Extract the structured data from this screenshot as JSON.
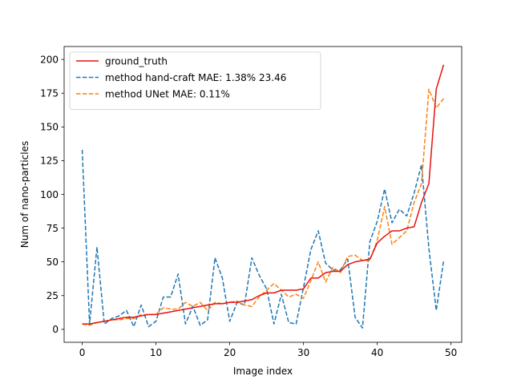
{
  "chart_data": {
    "type": "line",
    "xlabel": "Image index",
    "ylabel": "Num of nano-particles",
    "xlim": [
      -2.45,
      51.45
    ],
    "ylim": [
      -9.6,
      209.6
    ],
    "xticks": [
      0,
      10,
      20,
      30,
      40,
      50
    ],
    "yticks": [
      0,
      25,
      50,
      75,
      100,
      125,
      150,
      175,
      200
    ],
    "grid": false,
    "legend_position": "top-left",
    "x": [
      0,
      1,
      2,
      3,
      4,
      5,
      6,
      7,
      8,
      9,
      10,
      11,
      12,
      13,
      14,
      15,
      16,
      17,
      18,
      19,
      20,
      21,
      22,
      23,
      24,
      25,
      26,
      27,
      28,
      29,
      30,
      31,
      32,
      33,
      34,
      35,
      36,
      37,
      38,
      39,
      40,
      41,
      42,
      43,
      44,
      45,
      46,
      47,
      48,
      49
    ],
    "series": [
      {
        "name": "ground_truth",
        "color": "#e8110f",
        "dash": "solid",
        "values": [
          4,
          4,
          5,
          6,
          7,
          8,
          9,
          9,
          10,
          11,
          11,
          12,
          13,
          14,
          15,
          16,
          17,
          18,
          19,
          19,
          20,
          20,
          21,
          22,
          25,
          27,
          27,
          29,
          29,
          29,
          30,
          38,
          38,
          42,
          43,
          43,
          48,
          50,
          51,
          52,
          64,
          69,
          73,
          73,
          75,
          76,
          94,
          108,
          178,
          196
        ]
      },
      {
        "name": "method hand-craft MAE: 1.38% 23.46",
        "color": "#1f77b4",
        "dash": "dashed",
        "values": [
          133,
          4,
          61,
          4,
          8,
          10,
          14,
          2,
          18,
          2,
          6,
          24,
          24,
          41,
          4,
          17,
          3,
          7,
          53,
          38,
          6,
          20,
          18,
          53,
          40,
          30,
          4,
          26,
          5,
          4,
          31,
          59,
          73,
          49,
          44,
          44,
          52,
          9,
          1,
          65,
          80,
          104,
          79,
          89,
          84,
          101,
          122,
          60,
          14,
          51
        ]
      },
      {
        "name": "method UNet MAE: 0.11%",
        "color": "#ff7f0e",
        "dash": "dashed",
        "values": [
          4,
          3,
          5,
          6,
          7,
          7,
          8,
          8,
          11,
          11,
          11,
          16,
          15,
          15,
          20,
          17,
          20,
          14,
          20,
          19,
          20,
          21,
          18,
          17,
          24,
          29,
          34,
          29,
          24,
          26,
          23,
          36,
          50,
          35,
          46,
          42,
          54,
          55,
          51,
          51,
          66,
          91,
          63,
          68,
          73,
          94,
          108,
          178,
          164,
          171
        ]
      }
    ]
  }
}
